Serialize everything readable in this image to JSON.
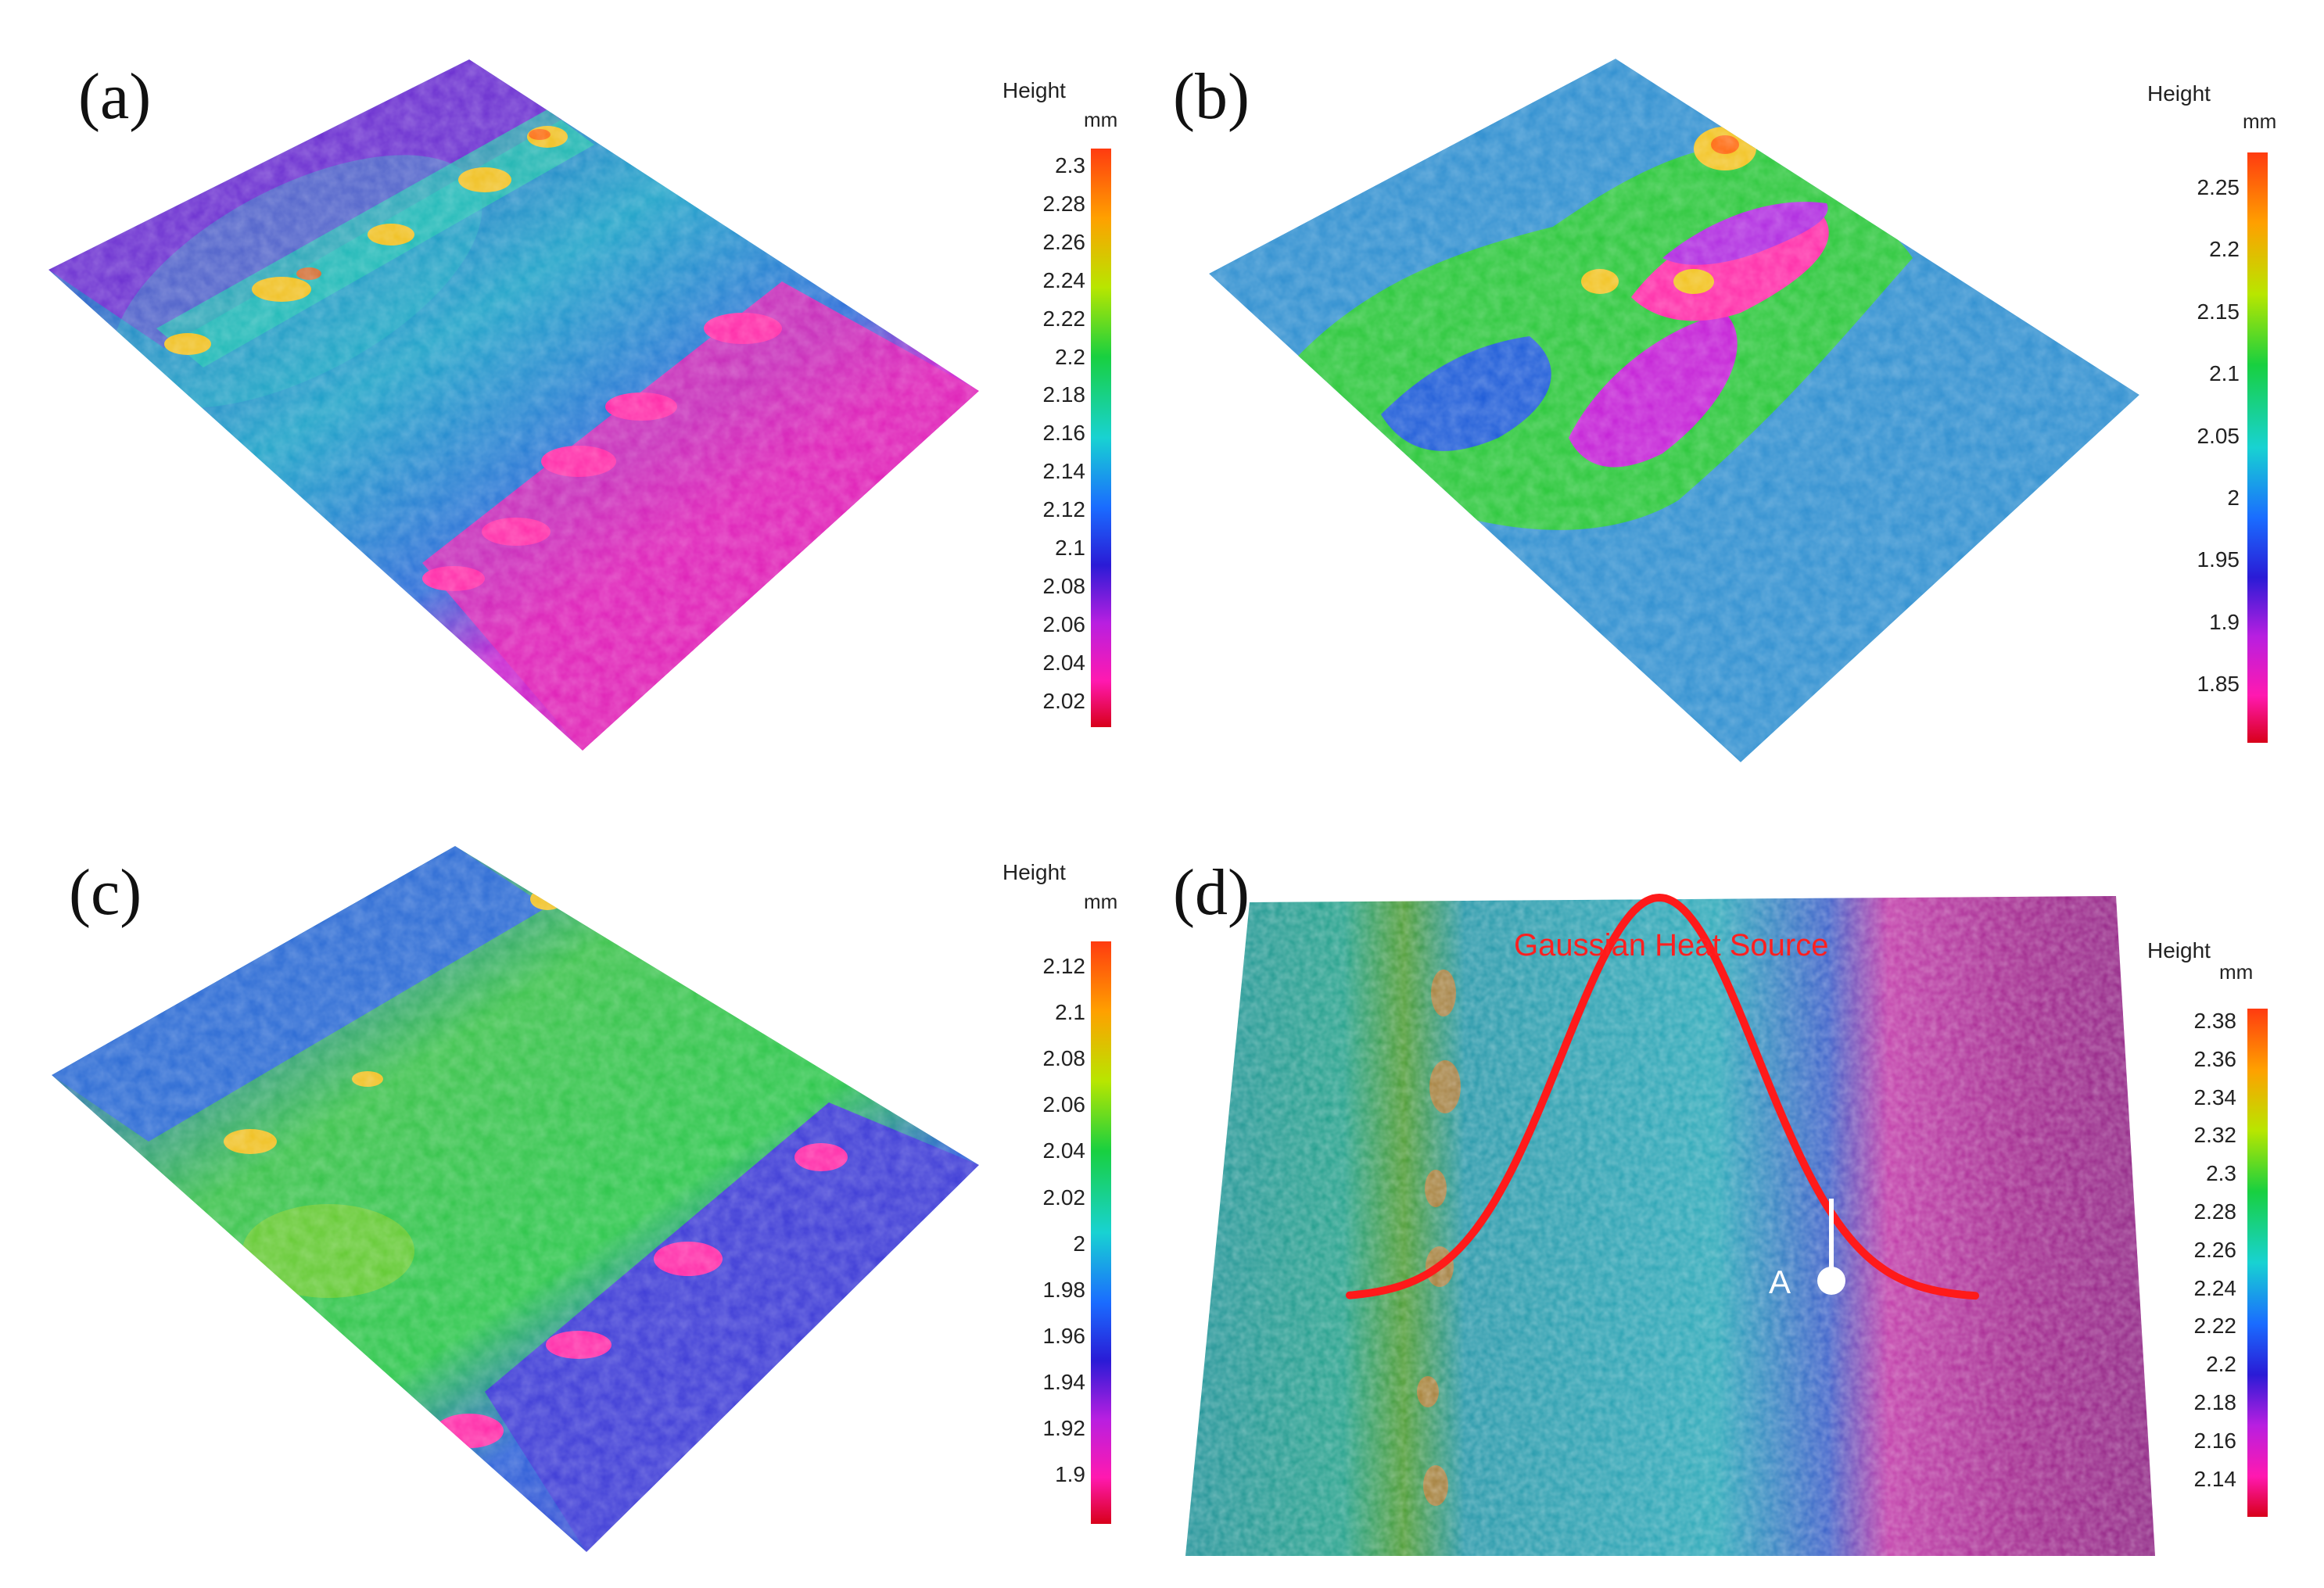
{
  "panels": [
    {
      "label": "(a)",
      "colorbar": {
        "title": "Height",
        "unit": "mm",
        "ticks": [
          "2.3",
          "2.28",
          "2.26",
          "2.24",
          "2.22",
          "2.2",
          "2.18",
          "2.16",
          "2.14",
          "2.12",
          "2.1",
          "2.08",
          "2.06",
          "2.04",
          "2.02"
        ]
      }
    },
    {
      "label": "(b)",
      "colorbar": {
        "title": "Height",
        "unit": "mm",
        "ticks": [
          "2.25",
          "2.2",
          "2.15",
          "2.1",
          "2.05",
          "2",
          "1.95",
          "1.9",
          "1.85"
        ]
      }
    },
    {
      "label": "(c)",
      "colorbar": {
        "title": "Height",
        "unit": "mm",
        "ticks": [
          "2.12",
          "2.1",
          "2.08",
          "2.06",
          "2.04",
          "2.02",
          "2",
          "1.98",
          "1.96",
          "1.94",
          "1.92",
          "1.9"
        ]
      }
    },
    {
      "label": "(d)",
      "colorbar": {
        "title": "Height",
        "unit": "mm",
        "ticks": [
          "2.38",
          "2.36",
          "2.34",
          "2.32",
          "2.3",
          "2.28",
          "2.26",
          "2.24",
          "2.22",
          "2.2",
          "2.18",
          "2.16",
          "2.14"
        ]
      },
      "annotation": {
        "curve_label": "Gaussian Heat Source",
        "point_label": "A"
      }
    }
  ],
  "colors": {
    "curve": "#ff1a1a",
    "point": "#ffffff",
    "scale": [
      "#ff3b10",
      "#ffb000",
      "#9be500",
      "#19d636",
      "#1ed6d0",
      "#1a6cff",
      "#2a1bd6",
      "#b81fe0",
      "#ff19b0",
      "#e0001a"
    ]
  }
}
